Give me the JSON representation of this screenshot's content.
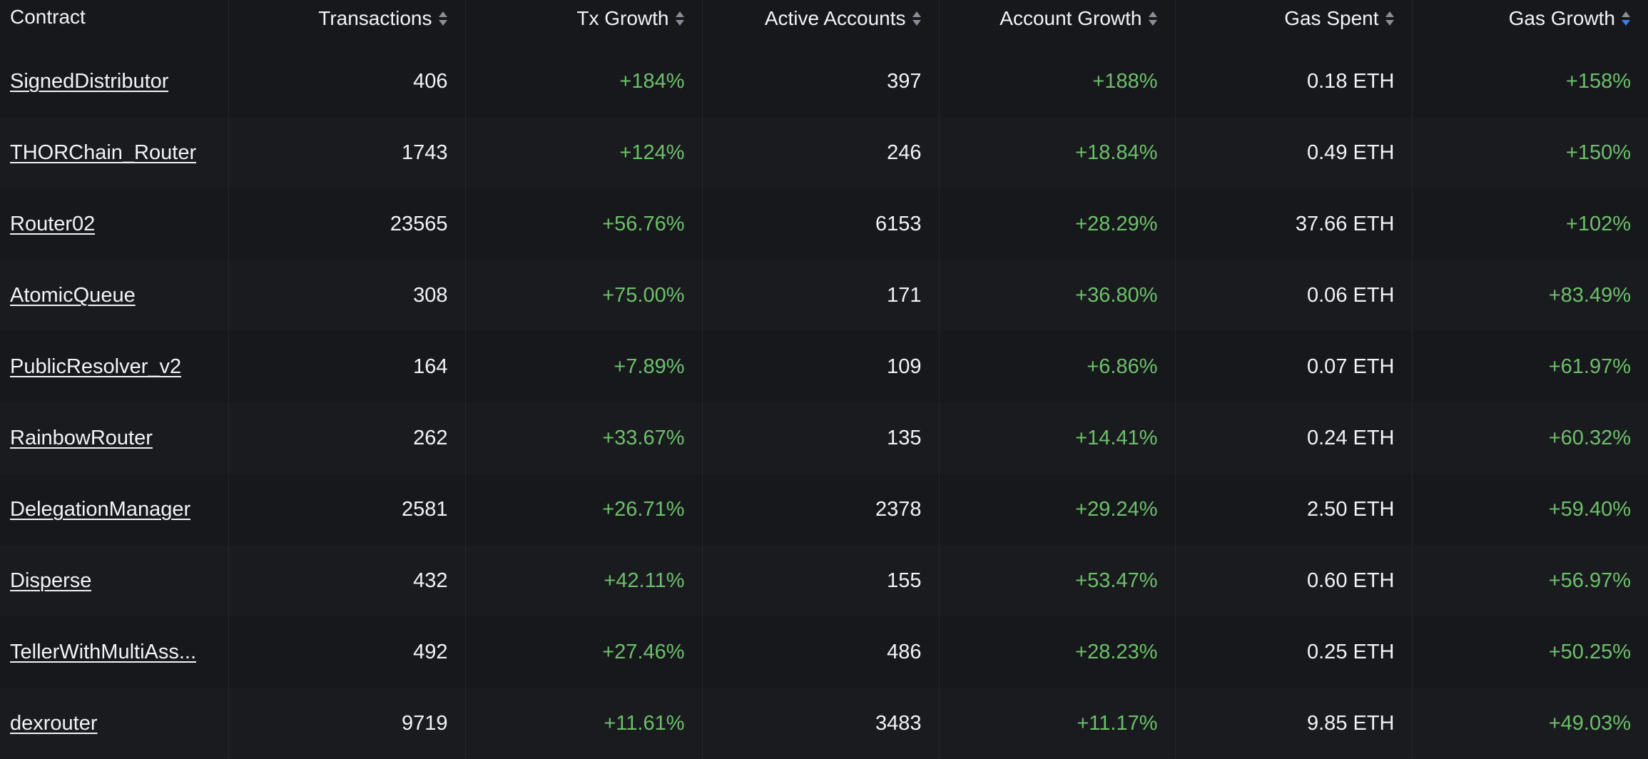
{
  "columns": [
    {
      "key": "contract",
      "label": "Contract",
      "sortable": false
    },
    {
      "key": "transactions",
      "label": "Transactions",
      "sortable": true
    },
    {
      "key": "tx_growth",
      "label": "Tx Growth",
      "sortable": true
    },
    {
      "key": "active_accounts",
      "label": "Active Accounts",
      "sortable": true
    },
    {
      "key": "account_growth",
      "label": "Account Growth",
      "sortable": true
    },
    {
      "key": "gas_spent",
      "label": "Gas Spent",
      "sortable": true
    },
    {
      "key": "gas_growth",
      "label": "Gas Growth",
      "sortable": true,
      "sorted": "desc"
    }
  ],
  "colors": {
    "background": "#17181c",
    "text": "#f2f3f5",
    "positive": "#6cc06a",
    "sort_active": "#3f7ee8"
  },
  "rows": [
    {
      "contract": "SignedDistributor",
      "transactions": "406",
      "tx_growth": "+184%",
      "active_accounts": "397",
      "account_growth": "+188%",
      "gas_spent": "0.18 ETH",
      "gas_growth": "+158%"
    },
    {
      "contract": "THORChain_Router",
      "transactions": "1743",
      "tx_growth": "+124%",
      "active_accounts": "246",
      "account_growth": "+18.84%",
      "gas_spent": "0.49 ETH",
      "gas_growth": "+150%"
    },
    {
      "contract": "Router02",
      "transactions": "23565",
      "tx_growth": "+56.76%",
      "active_accounts": "6153",
      "account_growth": "+28.29%",
      "gas_spent": "37.66 ETH",
      "gas_growth": "+102%"
    },
    {
      "contract": "AtomicQueue",
      "transactions": "308",
      "tx_growth": "+75.00%",
      "active_accounts": "171",
      "account_growth": "+36.80%",
      "gas_spent": "0.06 ETH",
      "gas_growth": "+83.49%"
    },
    {
      "contract": "PublicResolver_v2",
      "transactions": "164",
      "tx_growth": "+7.89%",
      "active_accounts": "109",
      "account_growth": "+6.86%",
      "gas_spent": "0.07 ETH",
      "gas_growth": "+61.97%"
    },
    {
      "contract": "RainbowRouter",
      "transactions": "262",
      "tx_growth": "+33.67%",
      "active_accounts": "135",
      "account_growth": "+14.41%",
      "gas_spent": "0.24 ETH",
      "gas_growth": "+60.32%"
    },
    {
      "contract": "DelegationManager",
      "transactions": "2581",
      "tx_growth": "+26.71%",
      "active_accounts": "2378",
      "account_growth": "+29.24%",
      "gas_spent": "2.50 ETH",
      "gas_growth": "+59.40%"
    },
    {
      "contract": "Disperse",
      "transactions": "432",
      "tx_growth": "+42.11%",
      "active_accounts": "155",
      "account_growth": "+53.47%",
      "gas_spent": "0.60 ETH",
      "gas_growth": "+56.97%"
    },
    {
      "contract": "TellerWithMultiAss...",
      "transactions": "492",
      "tx_growth": "+27.46%",
      "active_accounts": "486",
      "account_growth": "+28.23%",
      "gas_spent": "0.25 ETH",
      "gas_growth": "+50.25%"
    },
    {
      "contract": "dexrouter",
      "transactions": "9719",
      "tx_growth": "+11.61%",
      "active_accounts": "3483",
      "account_growth": "+11.17%",
      "gas_spent": "9.85 ETH",
      "gas_growth": "+49.03%"
    }
  ]
}
